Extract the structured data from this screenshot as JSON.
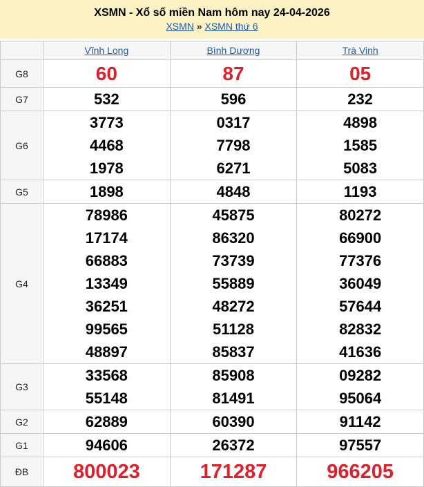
{
  "header": {
    "title": "XSMN - Xổ số miền Nam hôm nay 24-04-2026",
    "breadcrumb": [
      {
        "label": "XSMN"
      },
      {
        "label": "XSMN thứ 6"
      }
    ],
    "separator": "»"
  },
  "provinces": [
    "Vĩnh Long",
    "Bình Dương",
    "Trà Vinh"
  ],
  "colors": {
    "special": "#e0202a",
    "link": "#1a5bb5",
    "header_bg": "#fcf2c4"
  },
  "rows": [
    {
      "label": "G8",
      "style": "red",
      "values": [
        [
          "60"
        ],
        [
          "87"
        ],
        [
          "05"
        ]
      ]
    },
    {
      "label": "G7",
      "values": [
        [
          "532"
        ],
        [
          "596"
        ],
        [
          "232"
        ]
      ]
    },
    {
      "label": "G6",
      "values": [
        [
          "3773",
          "4468",
          "1978"
        ],
        [
          "0317",
          "7798",
          "6271"
        ],
        [
          "4898",
          "1585",
          "5083"
        ]
      ]
    },
    {
      "label": "G5",
      "values": [
        [
          "1898"
        ],
        [
          "4848"
        ],
        [
          "1193"
        ]
      ]
    },
    {
      "label": "G4",
      "values": [
        [
          "78986",
          "17174",
          "66883",
          "13349",
          "36251",
          "99565",
          "48897"
        ],
        [
          "45875",
          "86320",
          "73739",
          "55889",
          "48272",
          "51128",
          "85837"
        ],
        [
          "80272",
          "66900",
          "77376",
          "36049",
          "57644",
          "82832",
          "41636"
        ]
      ]
    },
    {
      "label": "G3",
      "values": [
        [
          "33568",
          "55148"
        ],
        [
          "85908",
          "81491"
        ],
        [
          "09282",
          "95064"
        ]
      ]
    },
    {
      "label": "G2",
      "values": [
        [
          "62889"
        ],
        [
          "60390"
        ],
        [
          "91142"
        ]
      ]
    },
    {
      "label": "G1",
      "values": [
        [
          "94606"
        ],
        [
          "26372"
        ],
        [
          "97557"
        ]
      ]
    },
    {
      "label": "ĐB",
      "style": "db",
      "values": [
        [
          "800023"
        ],
        [
          "171287"
        ],
        [
          "966205"
        ]
      ]
    }
  ]
}
